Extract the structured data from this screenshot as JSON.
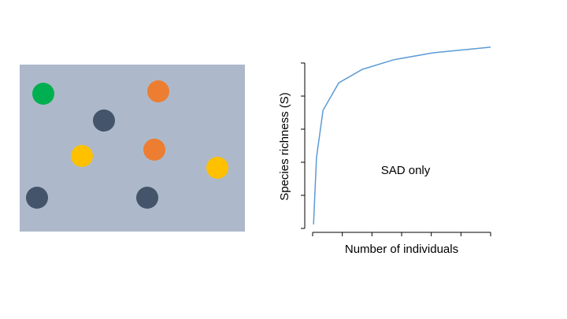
{
  "chart_data": {
    "type": "line",
    "xlabel": "Number of individuals",
    "ylabel": "Species richness (S)",
    "annotation": "SAD only",
    "xlim": [
      0,
      6
    ],
    "xticks": [
      0,
      1,
      2,
      3,
      4,
      5,
      6
    ],
    "ylim": [
      0,
      5
    ],
    "yticks": [
      0,
      1,
      2,
      3,
      4,
      5
    ],
    "x": [
      0.03,
      0.13,
      0.35,
      0.88,
      1.68,
      2.74,
      4.07,
      6
    ],
    "series": [
      {
        "color": "#5b9bd5",
        "values": [
          0.12,
          2.14,
          3.57,
          4.4,
          4.81,
          5.1,
          5.31,
          5.48
        ]
      }
    ]
  }
}
